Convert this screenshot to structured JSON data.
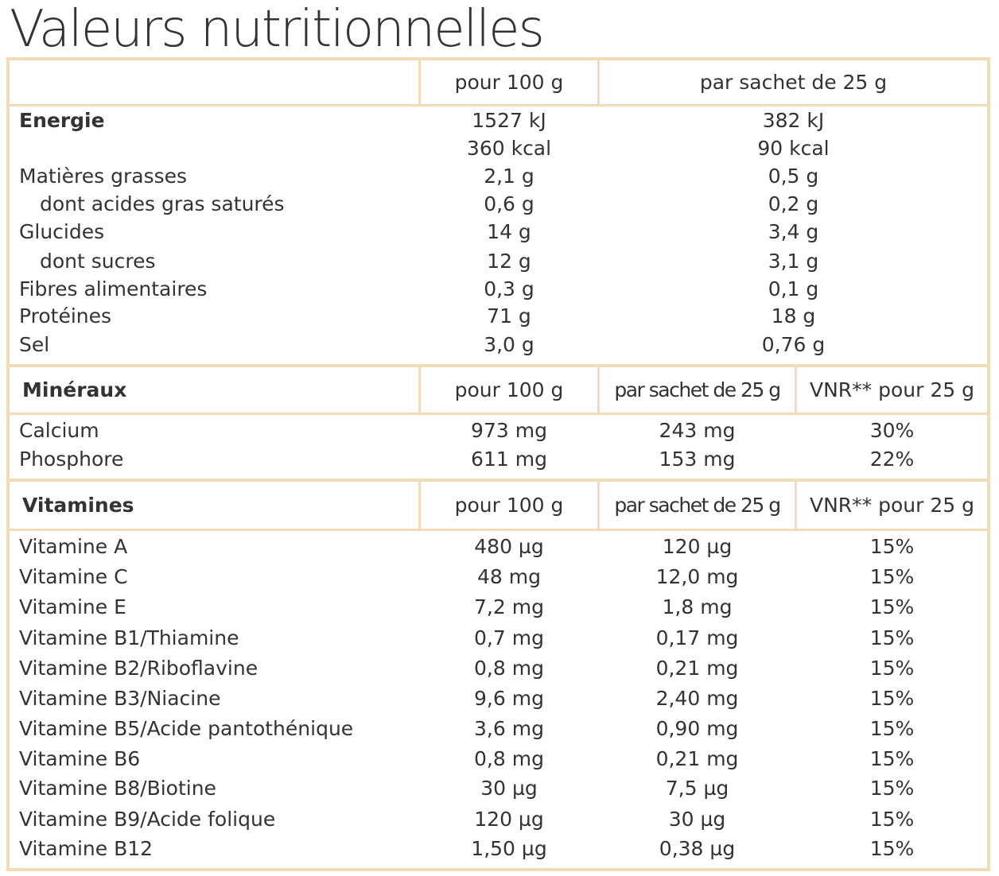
{
  "title": "Valeurs nutritionnelles",
  "nutrition": {
    "col_100": "pour 100 g",
    "col_sachet": "par sachet de 25 g",
    "rows": [
      {
        "label": "Energie",
        "v100": "1527 kJ",
        "vs": "382 kJ"
      },
      {
        "label": "",
        "v100": "360 kcal",
        "vs": "90 kcal"
      },
      {
        "label": "Matières grasses",
        "v100": "2,1 g",
        "vs": "0,5 g"
      },
      {
        "label": "dont acides gras saturés",
        "v100": "0,6 g",
        "vs": "0,2 g"
      },
      {
        "label": "Glucides",
        "v100": "14 g",
        "vs": "3,4 g"
      },
      {
        "label": "dont sucres",
        "v100": "12 g",
        "vs": "3,1 g"
      },
      {
        "label": "Fibres alimentaires",
        "v100": "0,3 g",
        "vs": "0,1 g"
      },
      {
        "label": "Protéines",
        "v100": "71 g",
        "vs": "18 g"
      },
      {
        "label": "Sel",
        "v100": "3,0 g",
        "vs": "0,76 g"
      }
    ]
  },
  "minerals": {
    "heading": "Minéraux",
    "col_100": "pour 100 g",
    "col_sachet": "par sachet de 25 g",
    "col_vnr": "VNR** pour 25 g",
    "rows": [
      {
        "label": "Calcium",
        "v100": "973 mg",
        "vs": "243 mg",
        "vnr": "30%"
      },
      {
        "label": "Phosphore",
        "v100": "611 mg",
        "vs": "153 mg",
        "vnr": "22%"
      }
    ]
  },
  "vitamins": {
    "heading": "Vitamines",
    "col_100": "pour 100 g",
    "col_sachet": "par sachet de 25 g",
    "col_vnr": "VNR** pour 25 g",
    "rows": [
      {
        "label": "Vitamine A",
        "v100": "480 µg",
        "vs": "120 µg",
        "vnr": "15%"
      },
      {
        "label": "Vitamine C",
        "v100": "48 mg",
        "vs": "12,0 mg",
        "vnr": "15%"
      },
      {
        "label": "Vitamine E",
        "v100": "7,2 mg",
        "vs": "1,8 mg",
        "vnr": "15%"
      },
      {
        "label": "Vitamine B1/Thiamine",
        "v100": "0,7 mg",
        "vs": "0,17 mg",
        "vnr": "15%"
      },
      {
        "label": "Vitamine B2/Riboflavine",
        "v100": "0,8 mg",
        "vs": "0,21 mg",
        "vnr": "15%"
      },
      {
        "label": "Vitamine B3/Niacine",
        "v100": "9,6 mg",
        "vs": "2,40 mg",
        "vnr": "15%"
      },
      {
        "label": "Vitamine B5/Acide pantothénique",
        "v100": "3,6 mg",
        "vs": "0,90 mg",
        "vnr": "15%"
      },
      {
        "label": "Vitamine B6",
        "v100": "0,8 mg",
        "vs": "0,21 mg",
        "vnr": "15%"
      },
      {
        "label": "Vitamine B8/Biotine",
        "v100": "30 µg",
        "vs": "7,5 µg",
        "vnr": "15%"
      },
      {
        "label": "Vitamine B9/Acide folique",
        "v100": "120 µg",
        "vs": "30 µg",
        "vnr": "15%"
      },
      {
        "label": "Vitamine B12",
        "v100": "1,50 µg",
        "vs": "0,38 µg",
        "vnr": "15%"
      }
    ]
  },
  "colors": {
    "border": "#f1dcb7",
    "text": "#333333"
  }
}
